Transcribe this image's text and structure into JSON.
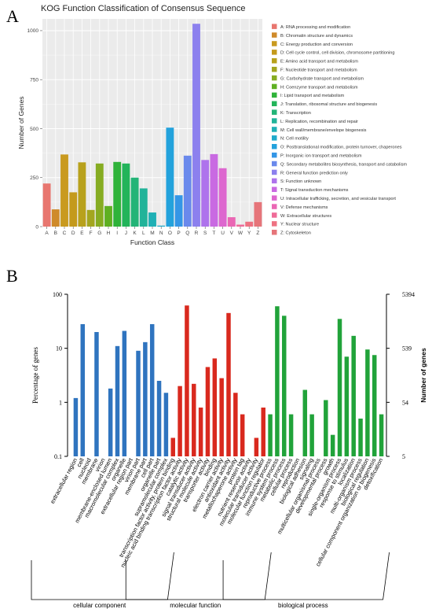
{
  "panel_a_letter": "A",
  "panel_b_letter": "B",
  "chart_data": [
    {
      "type": "bar",
      "title": "KOG Function Classification of Consensus Sequence",
      "xlabel": "Function Class",
      "ylabel": "Number of Genes",
      "ylim": [
        0,
        1060
      ],
      "yticks": [
        0,
        250,
        500,
        750,
        1000
      ],
      "grid": true,
      "legend_position": "right",
      "categories": [
        "A",
        "B",
        "C",
        "D",
        "E",
        "F",
        "G",
        "H",
        "I",
        "J",
        "K",
        "L",
        "M",
        "N",
        "O",
        "P",
        "Q",
        "R",
        "S",
        "T",
        "U",
        "V",
        "W",
        "Y",
        "Z"
      ],
      "values": [
        220,
        88,
        368,
        175,
        328,
        85,
        322,
        105,
        330,
        322,
        250,
        195,
        72,
        5,
        505,
        160,
        362,
        1035,
        340,
        370,
        298,
        48,
        10,
        25,
        125
      ],
      "colors": [
        "#e8766f",
        "#cf8a2a",
        "#c99a1f",
        "#c49a1c",
        "#b8a11c",
        "#a3a61f",
        "#86ac22",
        "#5fb022",
        "#2fb33a",
        "#22b45a",
        "#23b477",
        "#21b399",
        "#1fb0b5",
        "#1eaacb",
        "#23a2dc",
        "#3496e6",
        "#6a89ec",
        "#8c80ee",
        "#ae73ec",
        "#c96ae2",
        "#dd67cf",
        "#ea67b4",
        "#ef6b98",
        "#ee7282",
        "#e6757a"
      ],
      "legend": [
        "A: RNA processing and modification",
        "B: Chromatin structure and dynamics",
        "C: Energy production and conversion",
        "D: Cell cycle control, cell division, chromosome partitioning",
        "E: Amino acid transport and metabolism",
        "F: Nucleotide transport and metabolism",
        "G: Carbohydrate transport and metabolism",
        "H: Coenzyme transport and metabolism",
        "I: Lipid transport and metabolism",
        "J: Translation, ribosomal structure and biogenesis",
        "K: Transcription",
        "L: Replication, recombination and repair",
        "M: Cell wall/membrane/envelope biogenesis",
        "N: Cell motility",
        "O: Posttranslational modification, protein turnover, chaperones",
        "P: Inorganic ion transport and metabolism",
        "Q: Secondary metabolites biosynthesis, transport and catabolism",
        "R: General function prediction only",
        "S: Function unknown",
        "T: Signal transduction mechanisms",
        "U: Intracellular trafficking, secretion, and vesicular transport",
        "V: Defense mechanisms",
        "W: Extracellular structures",
        "Y: Nuclear structure",
        "Z: Cytoskeleton"
      ]
    },
    {
      "type": "bar",
      "ylabel": "Percentage of genes",
      "ylabel_right": "Number of genes",
      "yscale": "log",
      "ylim": [
        0.1,
        100
      ],
      "yticks": [
        "100",
        "10",
        "1",
        "0.1"
      ],
      "yticks_right": [
        "5394",
        "539",
        "54",
        "5"
      ],
      "groups": [
        {
          "name": "cellular component",
          "color": "#2f74bf",
          "categories": [
            "extracellular region",
            "cell",
            "nucleoid",
            "membrane",
            "virion",
            "membrane-enclosed lumen",
            "macromolecular complex",
            "organelle",
            "extracellular region part",
            "virion part",
            "membrane part",
            "cell part",
            "organelle part",
            "supramolecular complex"
          ],
          "values": [
            1.2,
            28,
            0.1,
            20,
            0.1,
            1.8,
            11,
            21,
            0.1,
            9,
            13,
            28,
            2.5,
            1.5
          ]
        },
        {
          "name": "molecular function",
          "color": "#d9291e",
          "categories": [
            "transcription factor activity, protein binding",
            "nucleic acid binding transcription factor activity",
            "catalytic activity",
            "signal transducer activity",
            "structural molecule activity",
            "transporter activity",
            "binding",
            "electron carrier activity",
            "antioxidant activity",
            "metallochaperone activity",
            "protein tag",
            "nutrient reservoir activity",
            "molecular transducer activity",
            "molecular function regulator"
          ],
          "values": [
            0.22,
            2,
            62,
            2.2,
            0.8,
            4.5,
            6.5,
            2.8,
            45,
            1.5,
            0.6,
            0.1,
            0.22,
            0.8
          ]
        },
        {
          "name": "biological process",
          "color": "#21a33a",
          "categories": [
            "reproductive process",
            "immune system process",
            "metabolic process",
            "cellular process",
            "reproduction",
            "biological adhesion",
            "signaling",
            "multicellular organismal process",
            "developmental process",
            "growth",
            "single-organism process",
            "response to stimulus",
            "localization",
            "multi-organism process",
            "biological regulation",
            "cellular component organization or biogenesis",
            "detoxification"
          ],
          "values": [
            0.6,
            60,
            40,
            0.6,
            0.1,
            1.7,
            0.6,
            0.1,
            1.1,
            0.25,
            35,
            7,
            17,
            0.5,
            9.5,
            7.5,
            0.6
          ]
        }
      ]
    }
  ]
}
